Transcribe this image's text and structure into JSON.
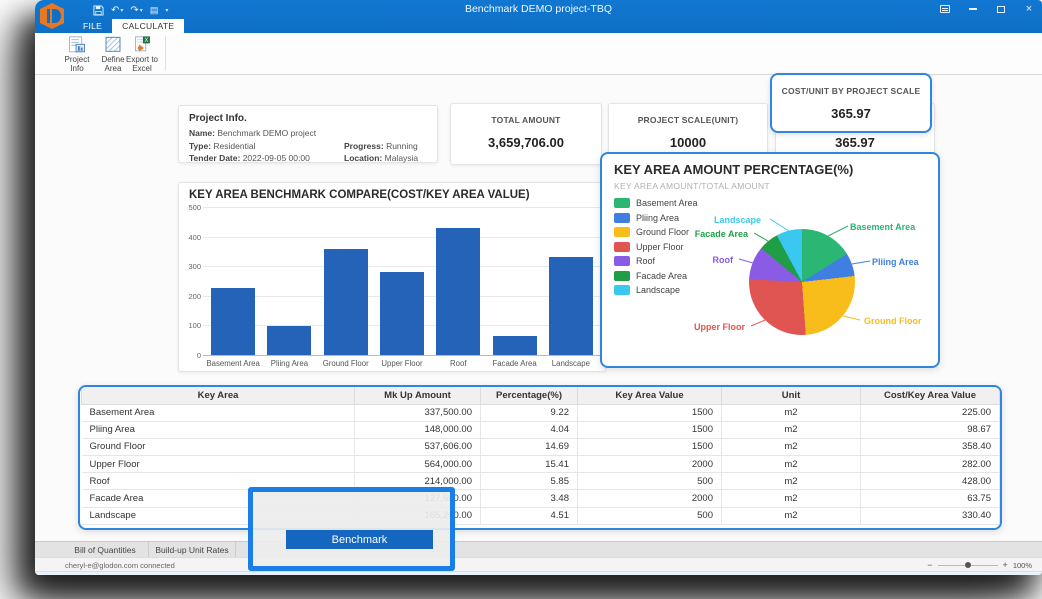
{
  "window": {
    "title": "Benchmark DEMO project-TBQ"
  },
  "header": {
    "tabs": [
      {
        "label": "FILE",
        "active": false
      },
      {
        "label": "CALCULATE",
        "active": true
      }
    ]
  },
  "ribbon": {
    "buttons": [
      {
        "id": "project-info",
        "label": "Project Info"
      },
      {
        "id": "define-area",
        "label": "Define Area"
      },
      {
        "id": "export-excel",
        "label": "Export to Excel"
      }
    ]
  },
  "project_info": {
    "title": "Project Info.",
    "fields": [
      {
        "label": "Name:",
        "value": "Benchmark DEMO project"
      },
      {
        "label": "Type:",
        "value": "Residential"
      },
      {
        "label": "Progress:",
        "value": "Running"
      },
      {
        "label": "Tender Date:",
        "value": "2022-09-05 00:00"
      },
      {
        "label": "Location:",
        "value": "Malaysia"
      }
    ]
  },
  "stats": [
    {
      "label": "TOTAL AMOUNT",
      "value": "3,659,706.00"
    },
    {
      "label": "PROJECT SCALE(UNIT)",
      "value": "10000"
    },
    {
      "label": "COST/UNIT BY PROJECT SCALE",
      "value": "365.97"
    }
  ],
  "callout": {
    "label": "COST/UNIT BY PROJECT SCALE",
    "value": "365.97"
  },
  "chart_data": [
    {
      "type": "bar",
      "title": "KEY AREA BENCHMARK COMPARE(COST/KEY AREA VALUE)",
      "categories": [
        "Basement Area",
        "Pliing Area",
        "Ground Floor",
        "Upper Floor",
        "Roof",
        "Facade Area",
        "Landscape"
      ],
      "values": [
        225.0,
        98.67,
        358.4,
        282.0,
        428.0,
        63.75,
        330.4
      ],
      "xlabel": "",
      "ylabel": "",
      "ylim": [
        0,
        500
      ],
      "ytick_step": 100,
      "grid": true,
      "bar_color": "#2563b8"
    },
    {
      "type": "pie",
      "title": "KEY AREA AMOUNT PERCENTAGE(%)",
      "subtitle": "KEY AREA AMOUNT/TOTAL AMOUNT",
      "labels": [
        "Basement Area",
        "Pliing Area",
        "Ground Floor",
        "Upper Floor",
        "Roof",
        "Facade Area",
        "Landscape"
      ],
      "values": [
        9.22,
        4.04,
        14.69,
        15.41,
        5.85,
        3.48,
        4.51
      ],
      "colors": [
        "#2bb673",
        "#3e7fe1",
        "#f8bd1a",
        "#e05452",
        "#8a5ce6",
        "#1f9e45",
        "#3bc8f0"
      ],
      "legend_position": "left"
    }
  ],
  "table": {
    "headers": [
      "Key Area",
      "Mk Up Amount",
      "Percentage(%)",
      "Key Area Value",
      "Unit",
      "Cost/Key Area Value"
    ],
    "rows": [
      [
        "Basement Area",
        "337,500.00",
        "9.22",
        "1500",
        "m2",
        "225.00"
      ],
      [
        "Pliing Area",
        "148,000.00",
        "4.04",
        "1500",
        "m2",
        "98.67"
      ],
      [
        "Ground Floor",
        "537,606.00",
        "14.69",
        "1500",
        "m2",
        "358.40"
      ],
      [
        "Upper Floor",
        "564,000.00",
        "15.41",
        "2000",
        "m2",
        "282.00"
      ],
      [
        "Roof",
        "214,000.00",
        "5.85",
        "500",
        "m2",
        "428.00"
      ],
      [
        "Facade Area",
        "127,500.00",
        "3.48",
        "2000",
        "m2",
        "63.75"
      ],
      [
        "Landscape",
        "165,200.00",
        "4.51",
        "500",
        "m2",
        "330.40"
      ]
    ]
  },
  "bottom_tabs": [
    "Bill of Quantities",
    "Build-up Unit Rates"
  ],
  "benchmark_popup": {
    "button_label": "Benchmark"
  },
  "statusbar": {
    "connection": "cheryl-e@glodon.com connected",
    "zoom_level": "100%"
  }
}
